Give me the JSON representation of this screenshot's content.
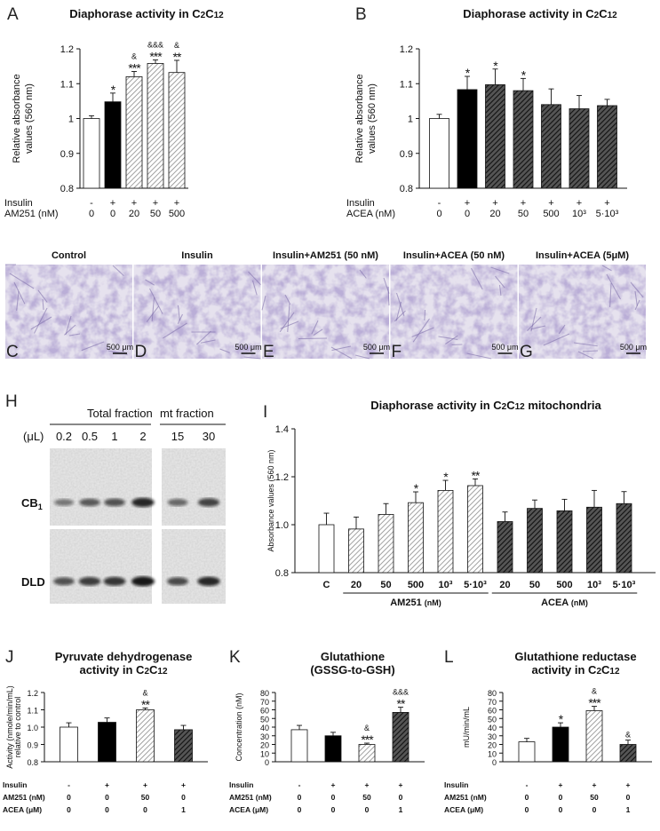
{
  "colors": {
    "white_bar": "#ffffff",
    "black_bar": "#000000",
    "hatch_light": "#9a9a9a",
    "hatch_dark": "#2a2a2a",
    "micro_bg": "#e6e2ee",
    "micro_stain": "#7a6aa8"
  },
  "micrographs": {
    "panels": [
      {
        "letter": "C",
        "label": "Control",
        "scale": "500 μm"
      },
      {
        "letter": "D",
        "label": "Insulin",
        "scale": "500 μm"
      },
      {
        "letter": "E",
        "label": "Insulin+AM251 (50 nM)",
        "scale": "500 μm"
      },
      {
        "letter": "F",
        "label": "Insulin+ACEA (50 nM)",
        "scale": "500 μm"
      },
      {
        "letter": "G",
        "label": "Insulin+ACEA (5μM)",
        "scale": "500 μm"
      }
    ]
  },
  "western": {
    "letter": "H",
    "total_label": "Total fraction",
    "mt_label": "mt fraction",
    "unit_label": "(μL)",
    "volumes": [
      "0.2",
      "0.5",
      "1",
      "2",
      "15",
      "30"
    ],
    "rows": [
      {
        "label": "CB",
        "sub": "1",
        "intensities": [
          0.35,
          0.55,
          0.6,
          0.9,
          0.45,
          0.7
        ]
      },
      {
        "label": "DLD",
        "sub": "",
        "intensities": [
          0.6,
          0.75,
          0.8,
          1.0,
          0.65,
          0.9
        ]
      }
    ]
  },
  "chart_data": [
    {
      "letter": "A",
      "type": "bar",
      "title": "Diaphorase activity in C2C12",
      "ylabel": "Relative absorbance values (560 nm)",
      "ylim": [
        0.8,
        1.2
      ],
      "yticks": [
        "0.8",
        "0.9",
        "1",
        "1.1",
        "1.2"
      ],
      "row_labels": [
        "Insulin",
        "AM251 (nM)"
      ],
      "categories": [
        [
          "-",
          "0"
        ],
        [
          "+",
          "0"
        ],
        [
          "+",
          "20"
        ],
        [
          "+",
          "50"
        ],
        [
          "+",
          "500"
        ]
      ],
      "values": [
        1.0,
        1.048,
        1.12,
        1.158,
        1.132
      ],
      "errors": [
        0.008,
        0.025,
        0.015,
        0.01,
        0.035
      ],
      "fills": [
        "white",
        "black",
        "light",
        "light",
        "light"
      ],
      "sig": [
        "",
        "*",
        "***",
        "***",
        "**"
      ],
      "amp": [
        "",
        "",
        "&",
        "&&&",
        "&"
      ]
    },
    {
      "letter": "B",
      "type": "bar",
      "title": "Diaphorase activity in C2C12",
      "ylabel": "Relative absorbance values (560 nm)",
      "ylim": [
        0.8,
        1.2
      ],
      "yticks": [
        "0.8",
        "0.9",
        "1",
        "1.1",
        "1.2"
      ],
      "row_labels": [
        "Insulin",
        "ACEA (nM)"
      ],
      "categories": [
        [
          "-",
          "0"
        ],
        [
          "+",
          "0"
        ],
        [
          "+",
          "20"
        ],
        [
          "+",
          "50"
        ],
        [
          "+",
          "500"
        ],
        [
          "+",
          "10³"
        ],
        [
          "+",
          "5·10³"
        ]
      ],
      "values": [
        1.0,
        1.083,
        1.097,
        1.08,
        1.04,
        1.028,
        1.037
      ],
      "errors": [
        0.012,
        0.038,
        0.045,
        0.035,
        0.045,
        0.038,
        0.018
      ],
      "fills": [
        "white",
        "black",
        "dark",
        "dark",
        "dark",
        "dark",
        "dark"
      ],
      "sig": [
        "",
        "*",
        "*",
        "*",
        "",
        "",
        ""
      ],
      "amp": [
        "",
        "",
        "",
        "",
        "",
        "",
        ""
      ]
    },
    {
      "letter": "I",
      "type": "bar",
      "title": "Diaphorase activity in C2C12 mitochondria",
      "ylabel": "Absorbance values (560 nm)",
      "ylim": [
        0.8,
        1.4
      ],
      "yticks": [
        "0.8",
        "1.0",
        "1.2",
        "1.4"
      ],
      "categories": [
        "C",
        "20",
        "50",
        "500",
        "10³",
        "5·10³",
        "20",
        "50",
        "500",
        "10³",
        "5·10³"
      ],
      "group_labels": [
        {
          "text": "AM251",
          "unit": "(nM)"
        },
        {
          "text": "ACEA",
          "unit": "(nM)"
        }
      ],
      "values": [
        1.0,
        0.982,
        1.043,
        1.092,
        1.143,
        1.163,
        1.013,
        1.068,
        1.058,
        1.073,
        1.088
      ],
      "errors": [
        0.048,
        0.05,
        0.045,
        0.045,
        0.042,
        0.028,
        0.04,
        0.035,
        0.048,
        0.07,
        0.05
      ],
      "fills": [
        "white",
        "light",
        "light",
        "light",
        "light",
        "light",
        "dark",
        "dark",
        "dark",
        "dark",
        "dark"
      ],
      "sig": [
        "",
        "",
        "",
        "*",
        "*",
        "**",
        "",
        "",
        "",
        "",
        ""
      ],
      "amp": [
        "",
        "",
        "",
        "",
        "",
        "",
        "",
        "",
        "",
        "",
        ""
      ]
    },
    {
      "letter": "J",
      "type": "bar",
      "title": "Pyruvate dehydrogenase",
      "title2": "activity in C2C12",
      "ylabel": "Activity (nmole/min/mL)",
      "ylabel2": "relative to control",
      "ylim": [
        0.8,
        1.2
      ],
      "yticks": [
        "0.8",
        "0.9",
        "1.0",
        "1.1",
        "1.2"
      ],
      "row_labels": [
        "Insulin",
        "AM251 (nM)",
        "ACEA (μM)"
      ],
      "categories": [
        [
          "-",
          "0",
          "0"
        ],
        [
          "+",
          "0",
          "0"
        ],
        [
          "+",
          "50",
          "0"
        ],
        [
          "+",
          "0",
          "1"
        ]
      ],
      "values": [
        1.0,
        1.028,
        1.1,
        0.985
      ],
      "errors": [
        0.025,
        0.025,
        0.01,
        0.025
      ],
      "fills": [
        "white",
        "black",
        "light",
        "dark"
      ],
      "sig": [
        "",
        "",
        "**",
        ""
      ],
      "amp": [
        "",
        "",
        "&",
        ""
      ]
    },
    {
      "letter": "K",
      "type": "bar",
      "title": "Glutathione",
      "title2": "(GSSG-to-GSH)",
      "ylabel": "Concentration (nM)",
      "ylim": [
        0,
        80
      ],
      "yticks": [
        "0",
        "10",
        "20",
        "30",
        "40",
        "50",
        "60",
        "70",
        "80"
      ],
      "row_labels": [
        "Insulin",
        "AM251 (nM)",
        "ACEA (μM)"
      ],
      "categories": [
        [
          "-",
          "0",
          "0"
        ],
        [
          "+",
          "0",
          "0"
        ],
        [
          "+",
          "50",
          "0"
        ],
        [
          "+",
          "0",
          "1"
        ]
      ],
      "values": [
        37,
        30,
        20,
        57
      ],
      "errors": [
        5,
        4,
        1.5,
        6
      ],
      "fills": [
        "white",
        "black",
        "light",
        "dark"
      ],
      "sig": [
        "",
        "",
        "***",
        "**"
      ],
      "amp": [
        "",
        "",
        "&",
        "&&&"
      ]
    },
    {
      "letter": "L",
      "type": "bar",
      "title": "Glutathione reductase",
      "title2": "activity in C2C12",
      "ylabel": "mU/min/mL",
      "ylim": [
        0,
        80
      ],
      "yticks": [
        "0",
        "10",
        "20",
        "30",
        "40",
        "50",
        "60",
        "70",
        "80"
      ],
      "row_labels": [
        "Insulin",
        "AM251 (nM)",
        "ACEA (μM)"
      ],
      "categories": [
        [
          "-",
          "0",
          "0"
        ],
        [
          "+",
          "0",
          "0"
        ],
        [
          "+",
          "50",
          "0"
        ],
        [
          "+",
          "0",
          "1"
        ]
      ],
      "values": [
        23,
        40,
        59,
        20
      ],
      "errors": [
        4,
        5,
        5,
        5
      ],
      "fills": [
        "white",
        "black",
        "light",
        "dark"
      ],
      "sig": [
        "",
        "*",
        "***",
        ""
      ],
      "amp": [
        "",
        "",
        "&",
        "&"
      ]
    }
  ]
}
